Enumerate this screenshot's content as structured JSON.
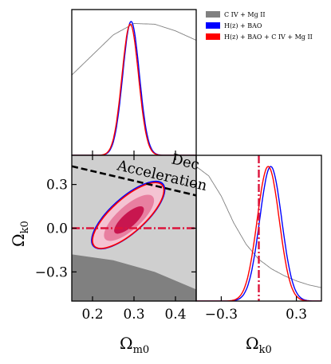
{
  "colors": {
    "civ_mgii": "#808080",
    "hz_bao": "#0000ff",
    "combined": "#ff0000",
    "combined_fill_inner": "#c8164f",
    "combined_fill_mid": "#e87fa0",
    "combined_fill_outer": "#f4c3d2",
    "region_light": "#cfcfcf",
    "region_dark": "#808080",
    "reference_line": "#dc143c"
  },
  "legend": {
    "items": [
      {
        "label": "C IV + Mg II",
        "color": "#808080"
      },
      {
        "label": "H(z) + BAO",
        "color": "#0000ff"
      },
      {
        "label": "H(z) + BAO + C IV + Mg II",
        "color": "#ff0000"
      }
    ],
    "placement": "top-right"
  },
  "annotations": {
    "acceleration": "Acceleration",
    "deceleration": "Dec"
  },
  "chart_data": [
    {
      "panel": "marginal-Omega_m0",
      "type": "line",
      "xlim": [
        0.15,
        0.45
      ],
      "series": [
        {
          "name": "C IV + Mg II",
          "kind": "broad",
          "x": [
            0.15,
            0.2,
            0.25,
            0.3,
            0.35,
            0.4,
            0.45
          ],
          "y": [
            0.6,
            0.75,
            0.9,
            0.985,
            0.98,
            0.93,
            0.86
          ]
        },
        {
          "name": "H(z) + BAO",
          "kind": "gauss",
          "mu": 0.293,
          "sigma": 0.02,
          "peak": 1.0
        },
        {
          "name": "H(z) + BAO + C IV + Mg II",
          "kind": "gauss",
          "mu": 0.291,
          "sigma": 0.02,
          "peak": 0.98
        }
      ]
    },
    {
      "panel": "joint-Omega_m0-Omega_k0",
      "type": "contour",
      "xlabel": "Ω_m0",
      "ylabel": "Ω_k0",
      "xlim": [
        0.15,
        0.45
      ],
      "ylim": [
        -0.5,
        0.5
      ],
      "x_ticks": [
        0.2,
        0.3,
        0.4
      ],
      "y_ticks": [
        0.3,
        0.0,
        -0.3
      ],
      "reference_line": {
        "axis": "y",
        "value": 0.0
      },
      "acceleration_boundary": [
        [
          0.15,
          0.425
        ],
        [
          0.45,
          0.225
        ]
      ],
      "disallowed_boundary": [
        [
          0.15,
          -0.18
        ],
        [
          0.25,
          -0.22
        ],
        [
          0.35,
          -0.3
        ],
        [
          0.45,
          -0.42
        ]
      ],
      "contours": [
        {
          "name": "H(z) + BAO + C IV + Mg II",
          "level": "1σ",
          "cx": 0.288,
          "cy": 0.056,
          "rx": 0.046,
          "ry": 0.075
        },
        {
          "name": "H(z) + BAO + C IV + Mg II",
          "level": "2σ",
          "cx": 0.288,
          "cy": 0.071,
          "rx": 0.077,
          "ry": 0.131
        },
        {
          "name": "H(z) + BAO + C IV + Mg II",
          "level": "3σ",
          "cx": 0.286,
          "cy": 0.087,
          "rx": 0.11,
          "ry": 0.185
        },
        {
          "name": "H(z) + BAO",
          "level": "3σ",
          "cx": 0.286,
          "cy": 0.09,
          "rx": 0.112,
          "ry": 0.19
        }
      ]
    },
    {
      "panel": "marginal-Omega_k0",
      "type": "line",
      "xlabel": "Ω_k0",
      "xlim": [
        -0.5,
        0.5
      ],
      "x_ticks": [
        -0.3,
        0.3
      ],
      "reference_line": {
        "axis": "x",
        "value": 0.0
      },
      "series": [
        {
          "name": "C IV + Mg II",
          "kind": "decay",
          "x": [
            -0.5,
            -0.4,
            -0.3,
            -0.2,
            -0.1,
            0.0,
            0.1,
            0.2,
            0.3,
            0.4,
            0.5
          ],
          "y": [
            1.0,
            0.93,
            0.78,
            0.58,
            0.42,
            0.31,
            0.24,
            0.19,
            0.15,
            0.12,
            0.1
          ]
        },
        {
          "name": "H(z) + BAO",
          "kind": "gauss",
          "mu": 0.095,
          "sigma": 0.088,
          "peak": 1.0
        },
        {
          "name": "H(z) + BAO + C IV + Mg II",
          "kind": "gauss",
          "mu": 0.075,
          "sigma": 0.088,
          "peak": 1.0
        }
      ]
    }
  ]
}
